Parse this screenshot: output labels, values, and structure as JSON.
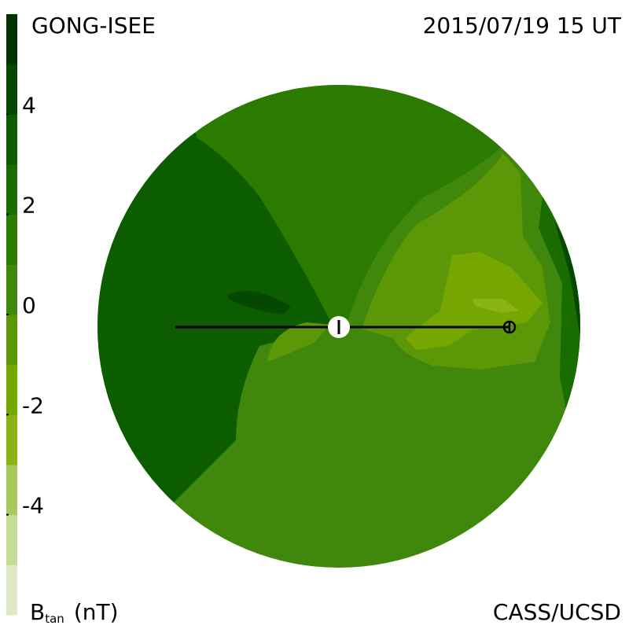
{
  "chart_data": {
    "type": "contour",
    "title": "GONG-ISEE",
    "date": "2015/07/19 15 UT",
    "credit": "CASS/UCSD",
    "colorbar": {
      "label": "B",
      "label_sub": "tan",
      "label_unit": "(nT)",
      "lim": [
        -6,
        6
      ],
      "ticks": [
        4,
        2,
        0,
        -2,
        -4
      ],
      "colors": [
        "#dde9c2",
        "#c6db96",
        "#a6ca5e",
        "#8ab316",
        "#76a600",
        "#5b9706",
        "#3f880b",
        "#2a7b00",
        "#196c00",
        "#0c5c00",
        "#054800",
        "#013200"
      ]
    }
  }
}
